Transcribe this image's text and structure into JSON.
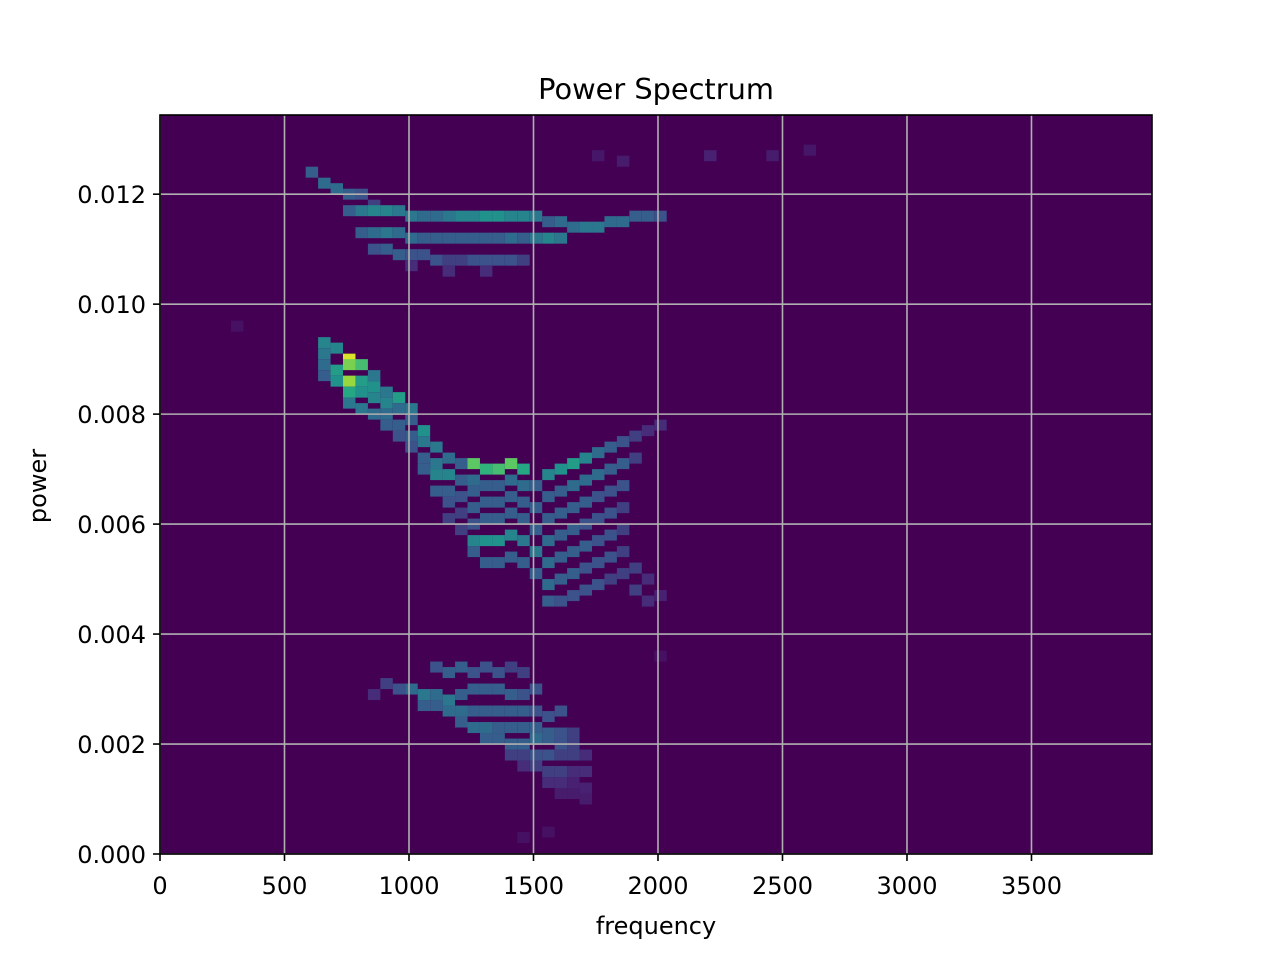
{
  "chart_data": {
    "type": "heatmap",
    "title": "Power Spectrum",
    "xlabel": "frequency",
    "ylabel": "power",
    "xlim": [
      0,
      3984
    ],
    "ylim": [
      0,
      0.01344
    ],
    "x_ticks": [
      0,
      500,
      1000,
      1500,
      2000,
      2500,
      3000,
      3500
    ],
    "x_tick_labels": [
      "0",
      "500",
      "1000",
      "1500",
      "2000",
      "2500",
      "3000",
      "3500"
    ],
    "y_ticks": [
      0.0,
      0.002,
      0.004,
      0.006,
      0.008,
      0.01,
      0.012
    ],
    "y_tick_labels": [
      "0.000",
      "0.002",
      "0.004",
      "0.006",
      "0.008",
      "0.010",
      "0.012"
    ],
    "grid": true,
    "colormap": "viridis",
    "background_color": "#440154",
    "grid_color": "#b0b0b0",
    "cell_width": 50,
    "cell_height": 0.0002,
    "cells": [
      [
        610,
        0.0124,
        0.3
      ],
      [
        660,
        0.0122,
        0.35
      ],
      [
        710,
        0.0121,
        0.35
      ],
      [
        760,
        0.012,
        0.3
      ],
      [
        810,
        0.012,
        0.25
      ],
      [
        860,
        0.0118,
        0.2
      ],
      [
        760,
        0.0117,
        0.3
      ],
      [
        810,
        0.0117,
        0.4
      ],
      [
        860,
        0.0117,
        0.45
      ],
      [
        910,
        0.0117,
        0.45
      ],
      [
        960,
        0.0117,
        0.4
      ],
      [
        1010,
        0.0116,
        0.4
      ],
      [
        1060,
        0.0116,
        0.35
      ],
      [
        1110,
        0.0116,
        0.35
      ],
      [
        1160,
        0.0116,
        0.4
      ],
      [
        1210,
        0.0116,
        0.45
      ],
      [
        1260,
        0.0116,
        0.45
      ],
      [
        1310,
        0.0116,
        0.5
      ],
      [
        1360,
        0.0116,
        0.5
      ],
      [
        1410,
        0.0116,
        0.45
      ],
      [
        1460,
        0.0116,
        0.45
      ],
      [
        1510,
        0.0116,
        0.4
      ],
      [
        1560,
        0.0115,
        0.3
      ],
      [
        1610,
        0.0115,
        0.35
      ],
      [
        1660,
        0.0114,
        0.35
      ],
      [
        1710,
        0.0114,
        0.4
      ],
      [
        1760,
        0.0114,
        0.4
      ],
      [
        1810,
        0.0115,
        0.35
      ],
      [
        1860,
        0.0115,
        0.35
      ],
      [
        1910,
        0.0116,
        0.3
      ],
      [
        1960,
        0.0116,
        0.3
      ],
      [
        2010,
        0.0116,
        0.25
      ],
      [
        810,
        0.0113,
        0.3
      ],
      [
        860,
        0.0113,
        0.35
      ],
      [
        910,
        0.0113,
        0.4
      ],
      [
        960,
        0.0113,
        0.35
      ],
      [
        1010,
        0.0112,
        0.35
      ],
      [
        1060,
        0.0112,
        0.3
      ],
      [
        1110,
        0.0112,
        0.3
      ],
      [
        1160,
        0.0112,
        0.3
      ],
      [
        1210,
        0.0112,
        0.3
      ],
      [
        1260,
        0.0112,
        0.3
      ],
      [
        1310,
        0.0112,
        0.3
      ],
      [
        1360,
        0.0112,
        0.3
      ],
      [
        1410,
        0.0112,
        0.35
      ],
      [
        1460,
        0.0112,
        0.3
      ],
      [
        1510,
        0.0112,
        0.4
      ],
      [
        1560,
        0.0112,
        0.45
      ],
      [
        1610,
        0.0112,
        0.4
      ],
      [
        860,
        0.011,
        0.25
      ],
      [
        910,
        0.011,
        0.3
      ],
      [
        960,
        0.0109,
        0.3
      ],
      [
        1010,
        0.0109,
        0.25
      ],
      [
        1060,
        0.0109,
        0.25
      ],
      [
        1110,
        0.0108,
        0.25
      ],
      [
        1160,
        0.0108,
        0.2
      ],
      [
        1210,
        0.0108,
        0.2
      ],
      [
        1260,
        0.0108,
        0.25
      ],
      [
        1310,
        0.0108,
        0.25
      ],
      [
        1360,
        0.0108,
        0.25
      ],
      [
        1410,
        0.0108,
        0.25
      ],
      [
        1460,
        0.0108,
        0.2
      ],
      [
        1010,
        0.0107,
        0.15
      ],
      [
        1160,
        0.0106,
        0.15
      ],
      [
        1310,
        0.0106,
        0.15
      ],
      [
        2210,
        0.0127,
        0.12
      ],
      [
        2460,
        0.0127,
        0.1
      ],
      [
        2610,
        0.0128,
        0.08
      ],
      [
        1860,
        0.0126,
        0.1
      ],
      [
        1760,
        0.0127,
        0.08
      ],
      [
        660,
        0.0093,
        0.45
      ],
      [
        660,
        0.0091,
        0.4
      ],
      [
        660,
        0.0089,
        0.35
      ],
      [
        660,
        0.0087,
        0.3
      ],
      [
        710,
        0.0092,
        0.45
      ],
      [
        710,
        0.0088,
        0.55
      ],
      [
        710,
        0.0086,
        0.5
      ],
      [
        760,
        0.009,
        0.95
      ],
      [
        760,
        0.0089,
        0.8
      ],
      [
        760,
        0.0086,
        0.85
      ],
      [
        760,
        0.0084,
        0.6
      ],
      [
        760,
        0.0082,
        0.4
      ],
      [
        810,
        0.0089,
        0.7
      ],
      [
        810,
        0.0086,
        0.55
      ],
      [
        810,
        0.0084,
        0.5
      ],
      [
        810,
        0.0081,
        0.4
      ],
      [
        860,
        0.0087,
        0.4
      ],
      [
        860,
        0.0085,
        0.5
      ],
      [
        860,
        0.0083,
        0.45
      ],
      [
        860,
        0.008,
        0.35
      ],
      [
        910,
        0.0084,
        0.4
      ],
      [
        910,
        0.0082,
        0.45
      ],
      [
        910,
        0.008,
        0.35
      ],
      [
        910,
        0.0078,
        0.3
      ],
      [
        960,
        0.0083,
        0.55
      ],
      [
        960,
        0.0081,
        0.35
      ],
      [
        960,
        0.0078,
        0.3
      ],
      [
        960,
        0.0076,
        0.25
      ],
      [
        1010,
        0.0081,
        0.4
      ],
      [
        1010,
        0.0079,
        0.3
      ],
      [
        1010,
        0.0076,
        0.3
      ],
      [
        1010,
        0.0074,
        0.25
      ],
      [
        1060,
        0.0077,
        0.5
      ],
      [
        1060,
        0.0075,
        0.4
      ],
      [
        1060,
        0.0072,
        0.3
      ],
      [
        1060,
        0.007,
        0.3
      ],
      [
        1110,
        0.0074,
        0.4
      ],
      [
        1110,
        0.0071,
        0.4
      ],
      [
        1110,
        0.0069,
        0.45
      ],
      [
        1110,
        0.0066,
        0.3
      ],
      [
        1160,
        0.0072,
        0.35
      ],
      [
        1160,
        0.0069,
        0.45
      ],
      [
        1160,
        0.0066,
        0.3
      ],
      [
        1160,
        0.0064,
        0.25
      ],
      [
        1160,
        0.0061,
        0.2
      ],
      [
        1210,
        0.0071,
        0.3
      ],
      [
        1210,
        0.0068,
        0.3
      ],
      [
        1210,
        0.0065,
        0.25
      ],
      [
        1210,
        0.0062,
        0.2
      ],
      [
        1210,
        0.0059,
        0.2
      ],
      [
        1260,
        0.0071,
        0.75
      ],
      [
        1260,
        0.0068,
        0.35
      ],
      [
        1260,
        0.0066,
        0.3
      ],
      [
        1260,
        0.0063,
        0.3
      ],
      [
        1260,
        0.006,
        0.25
      ],
      [
        1260,
        0.0057,
        0.45
      ],
      [
        1260,
        0.0055,
        0.3
      ],
      [
        1310,
        0.007,
        0.65
      ],
      [
        1310,
        0.0067,
        0.3
      ],
      [
        1310,
        0.0064,
        0.3
      ],
      [
        1310,
        0.0061,
        0.3
      ],
      [
        1310,
        0.0057,
        0.5
      ],
      [
        1310,
        0.0053,
        0.3
      ],
      [
        1360,
        0.007,
        0.7
      ],
      [
        1360,
        0.0067,
        0.3
      ],
      [
        1360,
        0.0064,
        0.3
      ],
      [
        1360,
        0.0061,
        0.3
      ],
      [
        1360,
        0.0057,
        0.5
      ],
      [
        1360,
        0.0053,
        0.3
      ],
      [
        1410,
        0.0071,
        0.75
      ],
      [
        1410,
        0.0068,
        0.35
      ],
      [
        1410,
        0.0065,
        0.3
      ],
      [
        1410,
        0.0062,
        0.3
      ],
      [
        1410,
        0.0058,
        0.45
      ],
      [
        1410,
        0.0054,
        0.3
      ],
      [
        1460,
        0.007,
        0.6
      ],
      [
        1460,
        0.0067,
        0.35
      ],
      [
        1460,
        0.0064,
        0.3
      ],
      [
        1460,
        0.0061,
        0.3
      ],
      [
        1460,
        0.0057,
        0.4
      ],
      [
        1460,
        0.0053,
        0.3
      ],
      [
        1510,
        0.0067,
        0.3
      ],
      [
        1510,
        0.0063,
        0.3
      ],
      [
        1510,
        0.0059,
        0.3
      ],
      [
        1510,
        0.0055,
        0.4
      ],
      [
        1510,
        0.0051,
        0.3
      ],
      [
        1560,
        0.0069,
        0.45
      ],
      [
        1560,
        0.0065,
        0.3
      ],
      [
        1560,
        0.0061,
        0.3
      ],
      [
        1560,
        0.0057,
        0.35
      ],
      [
        1560,
        0.0053,
        0.35
      ],
      [
        1560,
        0.0049,
        0.35
      ],
      [
        1560,
        0.0046,
        0.3
      ],
      [
        1610,
        0.007,
        0.5
      ],
      [
        1610,
        0.0066,
        0.3
      ],
      [
        1610,
        0.0062,
        0.3
      ],
      [
        1610,
        0.0058,
        0.3
      ],
      [
        1610,
        0.0054,
        0.3
      ],
      [
        1610,
        0.005,
        0.3
      ],
      [
        1610,
        0.0046,
        0.25
      ],
      [
        1660,
        0.0071,
        0.55
      ],
      [
        1660,
        0.0067,
        0.35
      ],
      [
        1660,
        0.0063,
        0.3
      ],
      [
        1660,
        0.0059,
        0.3
      ],
      [
        1660,
        0.0055,
        0.3
      ],
      [
        1660,
        0.0051,
        0.3
      ],
      [
        1660,
        0.0047,
        0.25
      ],
      [
        1710,
        0.0072,
        0.45
      ],
      [
        1710,
        0.0068,
        0.35
      ],
      [
        1710,
        0.0064,
        0.3
      ],
      [
        1710,
        0.006,
        0.25
      ],
      [
        1710,
        0.0056,
        0.3
      ],
      [
        1710,
        0.0052,
        0.25
      ],
      [
        1710,
        0.0048,
        0.25
      ],
      [
        1760,
        0.0073,
        0.35
      ],
      [
        1760,
        0.0069,
        0.35
      ],
      [
        1760,
        0.0065,
        0.25
      ],
      [
        1760,
        0.0061,
        0.25
      ],
      [
        1760,
        0.0057,
        0.25
      ],
      [
        1760,
        0.0053,
        0.25
      ],
      [
        1760,
        0.0049,
        0.25
      ],
      [
        1810,
        0.0074,
        0.3
      ],
      [
        1810,
        0.007,
        0.3
      ],
      [
        1810,
        0.0066,
        0.25
      ],
      [
        1810,
        0.0062,
        0.25
      ],
      [
        1810,
        0.0058,
        0.25
      ],
      [
        1810,
        0.0054,
        0.25
      ],
      [
        1810,
        0.005,
        0.2
      ],
      [
        1860,
        0.0075,
        0.25
      ],
      [
        1860,
        0.0071,
        0.3
      ],
      [
        1860,
        0.0067,
        0.25
      ],
      [
        1860,
        0.0063,
        0.2
      ],
      [
        1860,
        0.0059,
        0.2
      ],
      [
        1860,
        0.0055,
        0.2
      ],
      [
        1860,
        0.0051,
        0.2
      ],
      [
        1910,
        0.0076,
        0.2
      ],
      [
        1910,
        0.0072,
        0.2
      ],
      [
        1910,
        0.0052,
        0.2
      ],
      [
        1910,
        0.0048,
        0.2
      ],
      [
        1960,
        0.0077,
        0.15
      ],
      [
        1960,
        0.005,
        0.15
      ],
      [
        1960,
        0.0046,
        0.15
      ],
      [
        2010,
        0.0078,
        0.15
      ],
      [
        2010,
        0.0047,
        0.12
      ],
      [
        1110,
        0.0034,
        0.25
      ],
      [
        1160,
        0.0033,
        0.3
      ],
      [
        1210,
        0.0034,
        0.3
      ],
      [
        1260,
        0.0033,
        0.25
      ],
      [
        1310,
        0.0034,
        0.25
      ],
      [
        1360,
        0.0033,
        0.25
      ],
      [
        1410,
        0.0034,
        0.2
      ],
      [
        1460,
        0.0033,
        0.2
      ],
      [
        910,
        0.0031,
        0.2
      ],
      [
        960,
        0.003,
        0.25
      ],
      [
        1010,
        0.003,
        0.35
      ],
      [
        1060,
        0.0029,
        0.4
      ],
      [
        1110,
        0.0029,
        0.35
      ],
      [
        1160,
        0.0028,
        0.4
      ],
      [
        1210,
        0.0029,
        0.3
      ],
      [
        1260,
        0.003,
        0.3
      ],
      [
        1310,
        0.003,
        0.3
      ],
      [
        1360,
        0.003,
        0.3
      ],
      [
        1410,
        0.0029,
        0.3
      ],
      [
        1460,
        0.0029,
        0.25
      ],
      [
        1510,
        0.003,
        0.25
      ],
      [
        860,
        0.0029,
        0.15
      ],
      [
        1060,
        0.0027,
        0.3
      ],
      [
        1110,
        0.0027,
        0.3
      ],
      [
        1160,
        0.0026,
        0.35
      ],
      [
        1210,
        0.0026,
        0.35
      ],
      [
        1260,
        0.0026,
        0.3
      ],
      [
        1310,
        0.0026,
        0.3
      ],
      [
        1360,
        0.0026,
        0.3
      ],
      [
        1410,
        0.0026,
        0.3
      ],
      [
        1460,
        0.0026,
        0.3
      ],
      [
        1510,
        0.0026,
        0.25
      ],
      [
        1560,
        0.0025,
        0.25
      ],
      [
        1610,
        0.0026,
        0.25
      ],
      [
        1210,
        0.0024,
        0.3
      ],
      [
        1260,
        0.0023,
        0.35
      ],
      [
        1310,
        0.0023,
        0.35
      ],
      [
        1360,
        0.0023,
        0.3
      ],
      [
        1410,
        0.0023,
        0.3
      ],
      [
        1460,
        0.0023,
        0.3
      ],
      [
        1510,
        0.0023,
        0.3
      ],
      [
        1560,
        0.0022,
        0.3
      ],
      [
        1610,
        0.0022,
        0.25
      ],
      [
        1660,
        0.0022,
        0.2
      ],
      [
        1310,
        0.0021,
        0.3
      ],
      [
        1360,
        0.0021,
        0.3
      ],
      [
        1410,
        0.002,
        0.3
      ],
      [
        1460,
        0.002,
        0.3
      ],
      [
        1510,
        0.0021,
        0.35
      ],
      [
        1560,
        0.0021,
        0.3
      ],
      [
        1610,
        0.002,
        0.25
      ],
      [
        1660,
        0.002,
        0.2
      ],
      [
        1410,
        0.0018,
        0.2
      ],
      [
        1460,
        0.0018,
        0.2
      ],
      [
        1510,
        0.0018,
        0.25
      ],
      [
        1560,
        0.0018,
        0.25
      ],
      [
        1610,
        0.0018,
        0.2
      ],
      [
        1660,
        0.0018,
        0.2
      ],
      [
        1710,
        0.0018,
        0.15
      ],
      [
        1460,
        0.0016,
        0.15
      ],
      [
        1510,
        0.0016,
        0.2
      ],
      [
        1560,
        0.0015,
        0.2
      ],
      [
        1610,
        0.0015,
        0.2
      ],
      [
        1660,
        0.0015,
        0.15
      ],
      [
        1710,
        0.0015,
        0.15
      ],
      [
        1560,
        0.0013,
        0.15
      ],
      [
        1610,
        0.0013,
        0.15
      ],
      [
        1660,
        0.0013,
        0.12
      ],
      [
        1710,
        0.0012,
        0.12
      ],
      [
        1610,
        0.0011,
        0.1
      ],
      [
        1660,
        0.0011,
        0.1
      ],
      [
        1710,
        0.001,
        0.1
      ],
      [
        1460,
        0.0003,
        0.06
      ],
      [
        1560,
        0.0004,
        0.06
      ],
      [
        310,
        0.0096,
        0.06
      ],
      [
        2010,
        0.0036,
        0.06
      ]
    ]
  }
}
